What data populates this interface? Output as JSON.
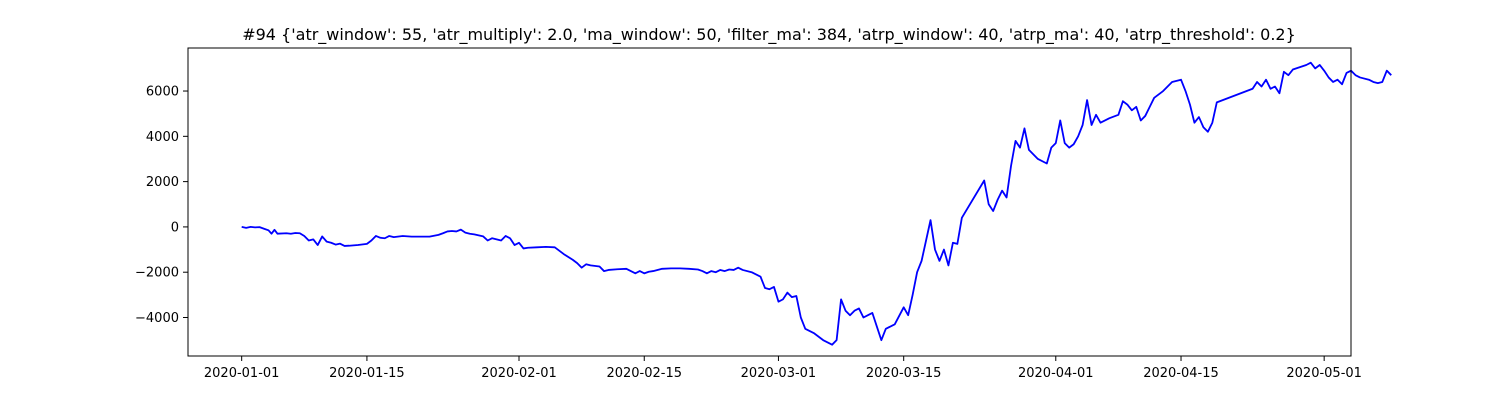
{
  "chart_data": {
    "type": "line",
    "title": "#94 {'atr_window': 55, 'atr_multiply': 2.0, 'ma_window': 50, 'filter_ma': 384, 'atrp_window': 40, 'atrp_ma': 40, 'atrp_threshold': 0.2}",
    "xlabel": "",
    "ylabel": "",
    "xlim": [
      "2019-12-26",
      "2020-05-04"
    ],
    "ylim": [
      -5700,
      7900
    ],
    "grid": false,
    "x_ticks": [
      "2020-01-01",
      "2020-01-15",
      "2020-02-01",
      "2020-02-15",
      "2020-03-01",
      "2020-03-15",
      "2020-04-01",
      "2020-04-15",
      "2020-05-01"
    ],
    "y_ticks": [
      -4000,
      -2000,
      0,
      2000,
      4000,
      6000
    ],
    "colors": {
      "line": "#0000ff"
    },
    "series": [
      {
        "points": [
          [
            "2020-01-01",
            0
          ],
          [
            "2020-01-01",
            -40
          ],
          [
            "2020-01-02",
            0
          ],
          [
            "2020-01-02",
            -20
          ],
          [
            "2020-01-03",
            -10
          ],
          [
            "2020-01-03",
            -80
          ],
          [
            "2020-01-04",
            -150
          ],
          [
            "2020-01-04",
            -300
          ],
          [
            "2020-01-04",
            -130
          ],
          [
            "2020-01-05",
            -300
          ],
          [
            "2020-01-06",
            -280
          ],
          [
            "2020-01-06",
            -300
          ],
          [
            "2020-01-07",
            -270
          ],
          [
            "2020-01-07",
            -280
          ],
          [
            "2020-01-08",
            -400
          ],
          [
            "2020-01-08",
            -600
          ],
          [
            "2020-01-09",
            -550
          ],
          [
            "2020-01-09",
            -800
          ],
          [
            "2020-01-10",
            -420
          ],
          [
            "2020-01-10",
            -650
          ],
          [
            "2020-01-11",
            -700
          ],
          [
            "2020-01-11",
            -780
          ],
          [
            "2020-01-12",
            -740
          ],
          [
            "2020-01-12",
            -840
          ],
          [
            "2020-01-13",
            -830
          ],
          [
            "2020-01-14",
            -800
          ],
          [
            "2020-01-15",
            -750
          ],
          [
            "2020-01-15",
            -600
          ],
          [
            "2020-01-16",
            -400
          ],
          [
            "2020-01-16",
            -480
          ],
          [
            "2020-01-17",
            -500
          ],
          [
            "2020-01-17",
            -400
          ],
          [
            "2020-01-18",
            -450
          ],
          [
            "2020-01-19",
            -400
          ],
          [
            "2020-01-20",
            -430
          ],
          [
            "2020-01-21",
            -430
          ],
          [
            "2020-01-22",
            -430
          ],
          [
            "2020-01-23",
            -350
          ],
          [
            "2020-01-23",
            -280
          ],
          [
            "2020-01-24",
            -200
          ],
          [
            "2020-01-24",
            -180
          ],
          [
            "2020-01-25",
            -200
          ],
          [
            "2020-01-25",
            -120
          ],
          [
            "2020-01-26",
            -250
          ],
          [
            "2020-01-26",
            -300
          ],
          [
            "2020-01-27",
            -330
          ],
          [
            "2020-01-28",
            -420
          ],
          [
            "2020-01-28",
            -600
          ],
          [
            "2020-01-29",
            -500
          ],
          [
            "2020-01-30",
            -600
          ],
          [
            "2020-01-30",
            -400
          ],
          [
            "2020-01-31",
            -500
          ],
          [
            "2020-01-31",
            -800
          ],
          [
            "2020-02-01",
            -700
          ],
          [
            "2020-02-01",
            -950
          ],
          [
            "2020-02-02",
            -920
          ],
          [
            "2020-02-03",
            -900
          ],
          [
            "2020-02-04",
            -880
          ],
          [
            "2020-02-05",
            -900
          ],
          [
            "2020-02-06",
            -1200
          ],
          [
            "2020-02-07",
            -1450
          ],
          [
            "2020-02-07",
            -1600
          ],
          [
            "2020-02-08",
            -1800
          ],
          [
            "2020-02-08",
            -1650
          ],
          [
            "2020-02-09",
            -1700
          ],
          [
            "2020-02-10",
            -1750
          ],
          [
            "2020-02-10",
            -1950
          ],
          [
            "2020-02-11",
            -1900
          ],
          [
            "2020-02-12",
            -1870
          ],
          [
            "2020-02-13",
            -1850
          ],
          [
            "2020-02-13",
            -1950
          ],
          [
            "2020-02-14",
            -2050
          ],
          [
            "2020-02-14",
            -1950
          ],
          [
            "2020-02-15",
            -2050
          ],
          [
            "2020-02-15",
            -1980
          ],
          [
            "2020-02-16",
            -1950
          ],
          [
            "2020-02-17",
            -1850
          ],
          [
            "2020-02-18",
            -1830
          ],
          [
            "2020-02-19",
            -1830
          ],
          [
            "2020-02-20",
            -1850
          ],
          [
            "2020-02-21",
            -1880
          ],
          [
            "2020-02-21",
            -1950
          ],
          [
            "2020-02-22",
            -2050
          ],
          [
            "2020-02-22",
            -1950
          ],
          [
            "2020-02-23",
            -2000
          ],
          [
            "2020-02-23",
            -1900
          ],
          [
            "2020-02-24",
            -1950
          ],
          [
            "2020-02-24",
            -1880
          ],
          [
            "2020-02-25",
            -1900
          ],
          [
            "2020-02-25",
            -1800
          ],
          [
            "2020-02-26",
            -1900
          ],
          [
            "2020-02-27",
            -2000
          ],
          [
            "2020-02-28",
            -2200
          ],
          [
            "2020-02-28",
            -2700
          ],
          [
            "2020-02-29",
            -2750
          ],
          [
            "2020-02-29",
            -2650
          ],
          [
            "2020-03-01",
            -3300
          ],
          [
            "2020-03-01",
            -3200
          ],
          [
            "2020-03-02",
            -2900
          ],
          [
            "2020-03-02",
            -3100
          ],
          [
            "2020-03-03",
            -3050
          ],
          [
            "2020-03-03",
            -4000
          ],
          [
            "2020-03-04",
            -4500
          ],
          [
            "2020-03-05",
            -4700
          ],
          [
            "2020-03-06",
            -5000
          ],
          [
            "2020-03-07",
            -5200
          ],
          [
            "2020-03-07",
            -5000
          ],
          [
            "2020-03-08",
            -3200
          ],
          [
            "2020-03-08",
            -3700
          ],
          [
            "2020-03-09",
            -3900
          ],
          [
            "2020-03-09",
            -3700
          ],
          [
            "2020-03-10",
            -3600
          ],
          [
            "2020-03-10",
            -4000
          ],
          [
            "2020-03-11",
            -3900
          ],
          [
            "2020-03-11",
            -3800
          ],
          [
            "2020-03-12",
            -4400
          ],
          [
            "2020-03-12",
            -5000
          ],
          [
            "2020-03-13",
            -4500
          ],
          [
            "2020-03-14",
            -4300
          ],
          [
            "2020-03-15",
            -3550
          ],
          [
            "2020-03-15",
            -3900
          ],
          [
            "2020-03-16",
            -3000
          ],
          [
            "2020-03-16",
            -2000
          ],
          [
            "2020-03-17",
            -1500
          ],
          [
            "2020-03-17",
            -600
          ],
          [
            "2020-03-18",
            300
          ],
          [
            "2020-03-18",
            -1000
          ],
          [
            "2020-03-19",
            -1500
          ],
          [
            "2020-03-19",
            -1000
          ],
          [
            "2020-03-20",
            -1700
          ],
          [
            "2020-03-20",
            -700
          ],
          [
            "2020-03-21",
            -750
          ],
          [
            "2020-03-21",
            400
          ],
          [
            "2020-03-24",
            2050
          ],
          [
            "2020-03-24",
            1000
          ],
          [
            "2020-03-25",
            700
          ],
          [
            "2020-03-25",
            1200
          ],
          [
            "2020-03-26",
            1600
          ],
          [
            "2020-03-26",
            1300
          ],
          [
            "2020-03-27",
            2700
          ],
          [
            "2020-03-27",
            3800
          ],
          [
            "2020-03-28",
            3500
          ],
          [
            "2020-03-28",
            4350
          ],
          [
            "2020-03-29",
            3400
          ],
          [
            "2020-03-30",
            3000
          ],
          [
            "2020-03-31",
            2800
          ],
          [
            "2020-03-31",
            3500
          ],
          [
            "2020-04-01",
            3700
          ],
          [
            "2020-04-01",
            4700
          ],
          [
            "2020-04-02",
            3700
          ],
          [
            "2020-04-02",
            3500
          ],
          [
            "2020-04-03",
            3650
          ],
          [
            "2020-04-03",
            4000
          ],
          [
            "2020-04-04",
            4500
          ],
          [
            "2020-04-04",
            5600
          ],
          [
            "2020-04-05",
            4500
          ],
          [
            "2020-04-05",
            4950
          ],
          [
            "2020-04-06",
            4600
          ],
          [
            "2020-04-07",
            4800
          ],
          [
            "2020-04-08",
            4950
          ],
          [
            "2020-04-08",
            5550
          ],
          [
            "2020-04-09",
            5400
          ],
          [
            "2020-04-09",
            5150
          ],
          [
            "2020-04-10",
            5300
          ],
          [
            "2020-04-10",
            4700
          ],
          [
            "2020-04-11",
            4900
          ],
          [
            "2020-04-11",
            5300
          ],
          [
            "2020-04-12",
            5700
          ],
          [
            "2020-04-13",
            6000
          ],
          [
            "2020-04-13",
            6200
          ],
          [
            "2020-04-14",
            6400
          ],
          [
            "2020-04-15",
            6500
          ],
          [
            "2020-04-15",
            6000
          ],
          [
            "2020-04-16",
            5400
          ],
          [
            "2020-04-16",
            4600
          ],
          [
            "2020-04-17",
            4850
          ],
          [
            "2020-04-17",
            4400
          ],
          [
            "2020-04-18",
            4200
          ],
          [
            "2020-04-18",
            4600
          ],
          [
            "2020-04-19",
            5500
          ],
          [
            "2020-04-23",
            6100
          ],
          [
            "2020-04-23",
            6400
          ],
          [
            "2020-04-24",
            6200
          ],
          [
            "2020-04-24",
            6500
          ],
          [
            "2020-04-25",
            6100
          ],
          [
            "2020-04-25",
            6200
          ],
          [
            "2020-04-26",
            5900
          ],
          [
            "2020-04-26",
            6850
          ],
          [
            "2020-04-27",
            6700
          ],
          [
            "2020-04-27",
            6950
          ],
          [
            "2020-04-29",
            7150
          ],
          [
            "2020-04-29",
            7250
          ],
          [
            "2020-04-30",
            7000
          ],
          [
            "2020-04-30",
            7150
          ],
          [
            "2020-05-01",
            6900
          ],
          [
            "2020-05-01",
            6600
          ],
          [
            "2020-05-02",
            6400
          ],
          [
            "2020-05-02",
            6500
          ],
          [
            "2020-05-03",
            6300
          ],
          [
            "2020-05-03",
            6800
          ],
          [
            "2020-05-04",
            6900
          ],
          [
            "2020-05-04",
            6700
          ],
          [
            "2020-05-05",
            6600
          ],
          [
            "2020-05-06",
            6500
          ],
          [
            "2020-05-06",
            6400
          ],
          [
            "2020-05-07",
            6350
          ],
          [
            "2020-05-07",
            6400
          ],
          [
            "2020-05-08",
            6900
          ],
          [
            "2020-05-08",
            6700
          ]
        ]
      }
    ]
  }
}
